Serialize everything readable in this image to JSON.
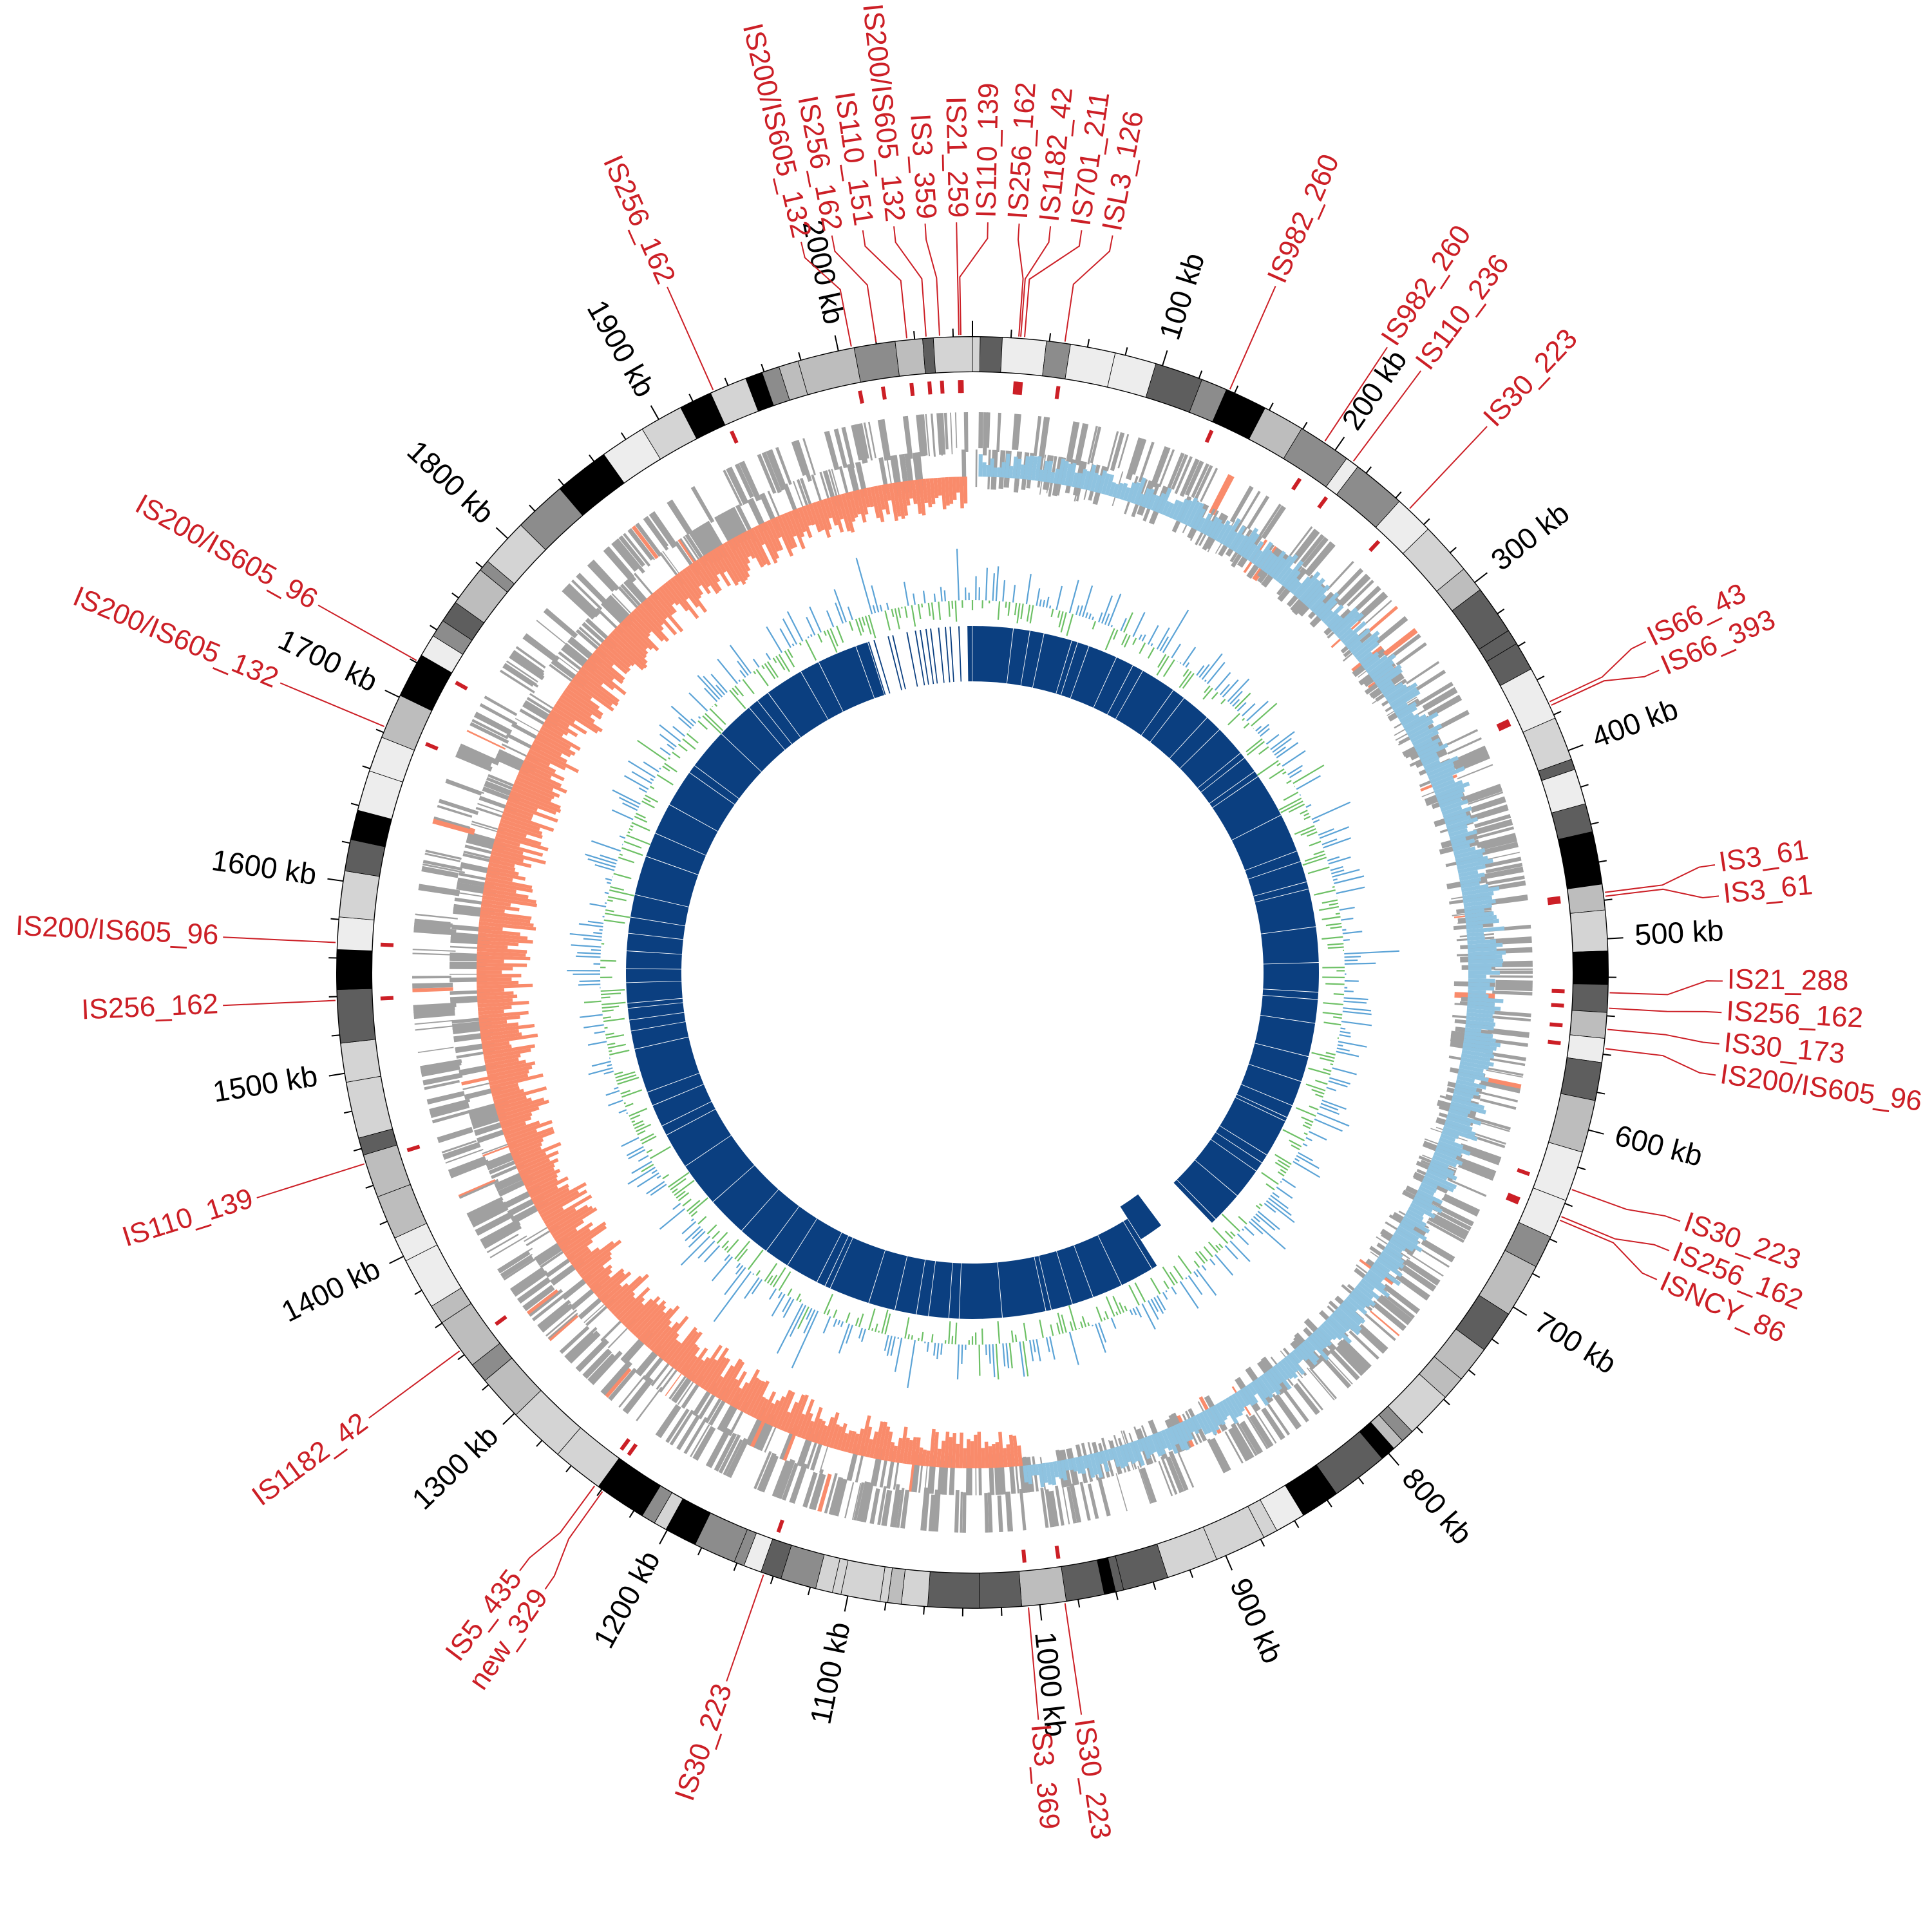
{
  "chart_data": {
    "type": "circos",
    "title": "",
    "genome_length_kb": 2070,
    "tick_labels": [
      "100 kb",
      "200 kb",
      "300 kb",
      "400 kb",
      "500 kb",
      "600 kb",
      "700 kb",
      "800 kb",
      "900 kb",
      "1000 kb",
      "1100 kb",
      "1200 kb",
      "1300 kb",
      "1400 kb",
      "1500 kb",
      "1600 kb",
      "1700 kb",
      "1800 kb",
      "1900 kb",
      "2000 kb"
    ],
    "tick_positions_kb": [
      100,
      200,
      300,
      400,
      500,
      600,
      700,
      800,
      900,
      1000,
      1100,
      1200,
      1300,
      1400,
      1500,
      1600,
      1700,
      1800,
      1900,
      2000
    ],
    "tracks": [
      "ideogram bands",
      "IS elements",
      "genes (gray)",
      "GC skew (blue positive / orange negative)",
      "GC content (blue above / green below)",
      "inner blocks (dark blue)"
    ],
    "is_elements": [
      {
        "label": "IS256_162",
        "kb": 1932
      },
      {
        "label": "IS200/IS605_132",
        "kb": 2007
      },
      {
        "label": "IS256_162",
        "kb": 2020
      },
      {
        "label": "IS110_151",
        "kb": 2036
      },
      {
        "label": "IS200/IS605_132",
        "kb": 2046
      },
      {
        "label": "IS3_359",
        "kb": 2053
      },
      {
        "label": "IS21_259",
        "kb": 2063
      },
      {
        "label": "IS110_139",
        "kb": 2064
      },
      {
        "label": "IS256_162",
        "kb": 24
      },
      {
        "label": "IS1182_42",
        "kb": 25
      },
      {
        "label": "IS701_211",
        "kb": 27
      },
      {
        "label": "ISL3_126",
        "kb": 48
      },
      {
        "label": "IS982_260",
        "kb": 137
      },
      {
        "label": "IS982_260",
        "kb": 193
      },
      {
        "label": "IS110_236",
        "kb": 211
      },
      {
        "label": "IS30_223",
        "kb": 249
      },
      {
        "label": "IS66_43",
        "kb": 373
      },
      {
        "label": "IS66_393",
        "kb": 375
      },
      {
        "label": "IS3_61",
        "kb": 476
      },
      {
        "label": "IS3_61",
        "kb": 478
      },
      {
        "label": "IS21_288",
        "kb": 528
      },
      {
        "label": "IS256_162",
        "kb": 536
      },
      {
        "label": "IS30_173",
        "kb": 547
      },
      {
        "label": "IS200/IS605_96",
        "kb": 557
      },
      {
        "label": "IS30_223",
        "kb": 632
      },
      {
        "label": "IS256_162",
        "kb": 647
      },
      {
        "label": "ISNCY_86",
        "kb": 649
      },
      {
        "label": "IS30_223",
        "kb": 987
      },
      {
        "label": "IS3_369",
        "kb": 1006
      },
      {
        "label": "IS30_223",
        "kb": 1145
      },
      {
        "label": "new_329",
        "kb": 1239
      },
      {
        "label": "IS5_435",
        "kb": 1244
      },
      {
        "label": "IS1182_42",
        "kb": 1343
      },
      {
        "label": "IS110_139",
        "kb": 1452
      },
      {
        "label": "IS256_162",
        "kb": 1538
      },
      {
        "label": "IS200/IS605_96",
        "kb": 1568
      },
      {
        "label": "IS200/IS605_132",
        "kb": 1683
      },
      {
        "label": "IS200/IS605_96",
        "kb": 1721
      }
    ],
    "colors": {
      "is_label": "#cc1f26",
      "skew_positive": "#8fc3e0",
      "skew_negative": "#f98b6b",
      "gc_above": "#5ba3d6",
      "gc_below": "#6dc065",
      "inner_blocks": "#0b3f80",
      "genes": "#a0a0a0"
    }
  }
}
